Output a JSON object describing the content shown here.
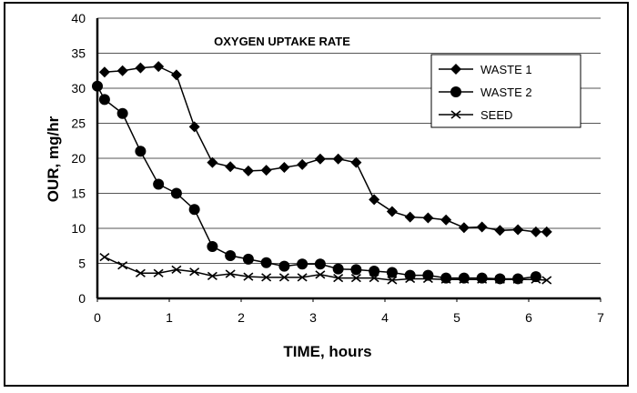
{
  "chart_data": {
    "type": "line",
    "title": "OXYGEN UPTAKE RATE",
    "xlabel": "TIME, hours",
    "ylabel": "OUR, mg/hr",
    "xlim": [
      0,
      7
    ],
    "ylim": [
      0,
      40
    ],
    "xticks": [
      0,
      1,
      2,
      3,
      4,
      5,
      6,
      7
    ],
    "yticks": [
      0,
      5,
      10,
      15,
      20,
      25,
      30,
      35,
      40
    ],
    "grid": "horizontal",
    "legend_position": "top-right",
    "series": [
      {
        "name": "WASTE 1",
        "marker": "diamond",
        "x": [
          0.1,
          0.35,
          0.6,
          0.85,
          1.1,
          1.35,
          1.6,
          1.85,
          2.1,
          2.35,
          2.6,
          2.85,
          3.1,
          3.35,
          3.6,
          3.85,
          4.1,
          4.35,
          4.6,
          4.85,
          5.1,
          5.35,
          5.6,
          5.85,
          6.1,
          6.25
        ],
        "y": [
          32.3,
          32.5,
          32.9,
          33.1,
          31.9,
          24.5,
          19.4,
          18.8,
          18.2,
          18.3,
          18.7,
          19.1,
          19.9,
          19.9,
          19.4,
          14.1,
          12.4,
          11.6,
          11.5,
          11.2,
          10.1,
          10.2,
          9.7,
          9.8,
          9.5,
          9.5
        ]
      },
      {
        "name": "WASTE 2",
        "marker": "circle",
        "x": [
          0,
          0.1,
          0.35,
          0.6,
          0.85,
          1.1,
          1.35,
          1.6,
          1.85,
          2.1,
          2.35,
          2.6,
          2.85,
          3.1,
          3.35,
          3.6,
          3.85,
          4.1,
          4.35,
          4.6,
          4.85,
          5.1,
          5.35,
          5.6,
          5.85,
          6.1
        ],
        "y": [
          30.3,
          28.4,
          26.4,
          21.0,
          16.3,
          15.0,
          12.7,
          7.4,
          6.1,
          5.6,
          5.1,
          4.6,
          4.9,
          4.9,
          4.2,
          4.1,
          3.9,
          3.7,
          3.3,
          3.3,
          2.9,
          2.9,
          2.9,
          2.8,
          2.8,
          3.1
        ]
      },
      {
        "name": "SEED",
        "marker": "x",
        "x": [
          0.1,
          0.35,
          0.6,
          0.85,
          1.1,
          1.35,
          1.6,
          1.85,
          2.1,
          2.35,
          2.6,
          2.85,
          3.1,
          3.35,
          3.6,
          3.85,
          4.1,
          4.35,
          4.6,
          4.85,
          5.1,
          5.35,
          5.6,
          5.85,
          6.1,
          6.25
        ],
        "y": [
          5.9,
          4.7,
          3.6,
          3.6,
          4.1,
          3.8,
          3.2,
          3.5,
          3.1,
          3.0,
          3.0,
          3.0,
          3.4,
          2.9,
          2.9,
          2.9,
          2.6,
          2.8,
          2.8,
          2.7,
          2.7,
          2.7,
          2.7,
          2.7,
          2.7,
          2.6
        ]
      }
    ]
  }
}
